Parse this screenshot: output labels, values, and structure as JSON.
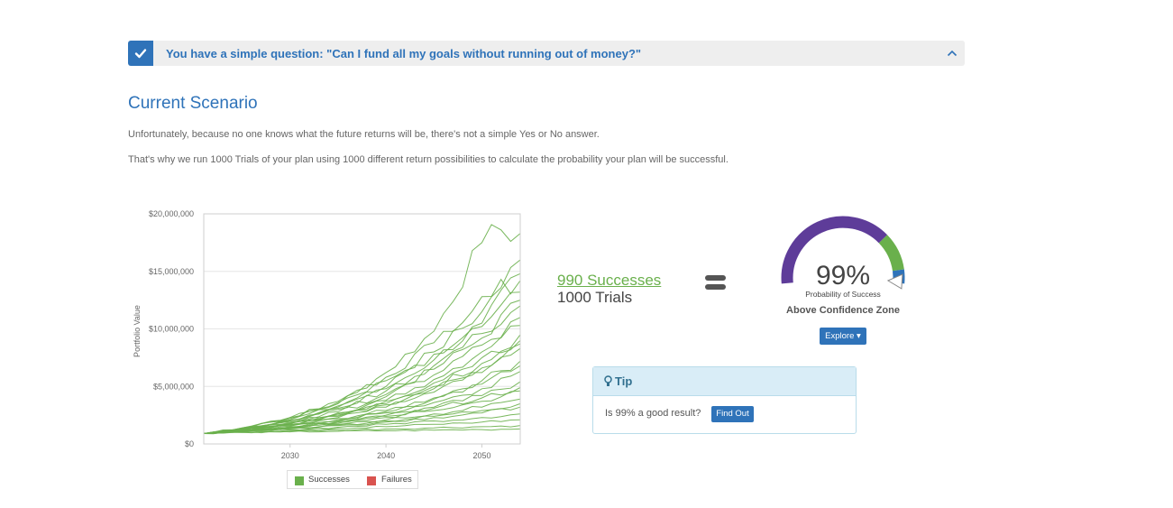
{
  "banner": {
    "text": "You have a simple question: \"Can I fund all my goals without running out of money?\"",
    "accent": "#2f73b9"
  },
  "section": {
    "title": "Current Scenario",
    "paragraph1": "Unfortunately, because no one knows what the future returns will be, there's not a simple Yes or No answer.",
    "paragraph2": "That's why we run 1000 Trials of your plan using 1000 different return possibilities to calculate the probability your plan will be successful."
  },
  "result": {
    "successes": "990 Successes",
    "trials": "1000 Trials"
  },
  "gauge": {
    "percent_text": "99%",
    "value": 0.99,
    "label": "Probability of Success",
    "zone": "Above Confidence Zone",
    "explore_label": "Explore",
    "colors": {
      "main": "#5e3c99",
      "confidence": "#6ab04c",
      "above": "#2f73b9"
    }
  },
  "tip": {
    "title": "Tip",
    "question": "Is 99% a good result?",
    "button": "Find Out"
  },
  "chart_data": {
    "type": "line",
    "ylabel": "Portfolio Value",
    "ylim": [
      0,
      20000000
    ],
    "xlim": [
      2021,
      2054
    ],
    "y_ticks": [
      "$0",
      "$5,000,000",
      "$10,000,000",
      "$15,000,000",
      "$20,000,000"
    ],
    "y_tick_values": [
      0,
      5000000,
      10000000,
      15000000,
      20000000
    ],
    "x_ticks": [
      "2030",
      "2040",
      "2050"
    ],
    "x_tick_values": [
      2030,
      2040,
      2050
    ],
    "legend": [
      {
        "name": "Successes",
        "color": "#6ab04c"
      },
      {
        "name": "Failures",
        "color": "#d9534f"
      }
    ],
    "series_color": "#6ab04c",
    "series": [
      {
        "name": "",
        "x": [
          2021,
          2025,
          2030,
          2035,
          2040,
          2045,
          2050,
          2052,
          2054
        ],
        "values": [
          900000,
          1400000,
          2300000,
          3500000,
          6200000,
          9800000,
          17500000,
          18600000,
          18300000
        ]
      },
      {
        "name": "",
        "x": [
          2021,
          2025,
          2030,
          2035,
          2040,
          2045,
          2050,
          2054
        ],
        "values": [
          900000,
          1400000,
          2300000,
          3600000,
          5500000,
          8000000,
          11500000,
          16000000
        ]
      },
      {
        "name": "",
        "x": [
          2021,
          2025,
          2030,
          2035,
          2040,
          2045,
          2050,
          2054
        ],
        "values": [
          900000,
          1350000,
          2100000,
          3300000,
          4800000,
          7300000,
          10500000,
          14800000
        ]
      },
      {
        "name": "",
        "x": [
          2021,
          2025,
          2030,
          2035,
          2040,
          2045,
          2050,
          2054
        ],
        "values": [
          900000,
          1300000,
          2000000,
          3000000,
          4300000,
          6500000,
          9200000,
          12500000
        ]
      },
      {
        "name": "",
        "x": [
          2021,
          2025,
          2030,
          2035,
          2040,
          2045,
          2050,
          2054
        ],
        "values": [
          900000,
          1300000,
          1900000,
          2700000,
          3800000,
          5600000,
          8000000,
          11000000
        ]
      },
      {
        "name": "",
        "x": [
          2021,
          2025,
          2030,
          2035,
          2040,
          2045,
          2050,
          2054
        ],
        "values": [
          900000,
          1250000,
          1800000,
          2500000,
          3500000,
          5000000,
          7000000,
          9500000
        ]
      },
      {
        "name": "",
        "x": [
          2021,
          2025,
          2030,
          2035,
          2040,
          2045,
          2050,
          2054
        ],
        "values": [
          900000,
          1250000,
          1700000,
          2300000,
          3200000,
          4500000,
          6200000,
          8300000
        ]
      },
      {
        "name": "",
        "x": [
          2021,
          2025,
          2030,
          2035,
          2040,
          2045,
          2050,
          2054
        ],
        "values": [
          900000,
          1200000,
          1650000,
          2200000,
          2900000,
          4000000,
          5500000,
          7200000
        ]
      },
      {
        "name": "",
        "x": [
          2021,
          2025,
          2030,
          2035,
          2040,
          2045,
          2050,
          2054
        ],
        "values": [
          900000,
          1200000,
          1600000,
          2100000,
          2700000,
          3600000,
          4800000,
          6300000
        ]
      },
      {
        "name": "",
        "x": [
          2021,
          2025,
          2030,
          2035,
          2040,
          2045,
          2050,
          2054
        ],
        "values": [
          900000,
          1150000,
          1500000,
          1950000,
          2500000,
          3200000,
          4200000,
          5400000
        ]
      },
      {
        "name": "",
        "x": [
          2021,
          2025,
          2030,
          2035,
          2040,
          2045,
          2050,
          2054
        ],
        "values": [
          900000,
          1150000,
          1450000,
          1800000,
          2300000,
          2900000,
          3700000,
          4600000
        ]
      },
      {
        "name": "",
        "x": [
          2021,
          2025,
          2030,
          2035,
          2040,
          2045,
          2050,
          2054
        ],
        "values": [
          900000,
          1100000,
          1400000,
          1700000,
          2100000,
          2600000,
          3200000,
          3900000
        ]
      },
      {
        "name": "",
        "x": [
          2021,
          2025,
          2030,
          2035,
          2040,
          2045,
          2050,
          2054
        ],
        "values": [
          900000,
          1100000,
          1300000,
          1600000,
          1900000,
          2300000,
          2700000,
          3200000
        ]
      },
      {
        "name": "",
        "x": [
          2021,
          2025,
          2030,
          2035,
          2040,
          2045,
          2050,
          2054
        ],
        "values": [
          900000,
          1050000,
          1250000,
          1450000,
          1700000,
          2000000,
          2300000,
          2600000
        ]
      },
      {
        "name": "",
        "x": [
          2021,
          2025,
          2030,
          2035,
          2040,
          2045,
          2050,
          2054
        ],
        "values": [
          900000,
          1050000,
          1200000,
          1350000,
          1500000,
          1700000,
          1900000,
          2100000
        ]
      },
      {
        "name": "",
        "x": [
          2021,
          2025,
          2030,
          2035,
          2040,
          2045,
          2050,
          2054
        ],
        "values": [
          900000,
          1000000,
          1100000,
          1200000,
          1300000,
          1400000,
          1500000,
          1600000
        ]
      },
      {
        "name": "",
        "x": [
          2021,
          2025,
          2030,
          2035,
          2040,
          2045,
          2050,
          2054
        ],
        "values": [
          900000,
          1000000,
          1050000,
          1100000,
          1150000,
          1200000,
          1250000,
          1300000
        ]
      },
      {
        "name": "",
        "x": [
          2021,
          2025,
          2030,
          2035,
          2040,
          2045,
          2050,
          2054
        ],
        "values": [
          900000,
          1350000,
          2200000,
          3700000,
          5800000,
          8800000,
          12800000,
          14200000
        ]
      },
      {
        "name": "",
        "x": [
          2021,
          2025,
          2030,
          2035,
          2040,
          2045,
          2050,
          2054
        ],
        "values": [
          900000,
          1300000,
          2050000,
          3200000,
          5000000,
          7800000,
          10200000,
          13200000
        ]
      },
      {
        "name": "",
        "x": [
          2021,
          2025,
          2030,
          2035,
          2040,
          2045,
          2050,
          2054
        ],
        "values": [
          900000,
          1250000,
          1850000,
          2800000,
          4100000,
          6000000,
          8600000,
          10300000
        ]
      },
      {
        "name": "",
        "x": [
          2021,
          2025,
          2030,
          2035,
          2040,
          2045,
          2050,
          2054
        ],
        "values": [
          900000,
          1200000,
          1750000,
          2600000,
          3700000,
          5300000,
          7500000,
          9000000
        ]
      },
      {
        "name": "",
        "x": [
          2021,
          2025,
          2030,
          2035,
          2040,
          2045,
          2050,
          2054
        ],
        "values": [
          900000,
          1150000,
          1550000,
          2000000,
          2800000,
          3900000,
          5200000,
          6800000
        ]
      },
      {
        "name": "",
        "x": [
          2021,
          2025,
          2030,
          2035,
          2040,
          2045,
          2050,
          2054
        ],
        "values": [
          900000,
          1100000,
          1400000,
          1900000,
          2400000,
          3100000,
          4000000,
          4900000
        ]
      },
      {
        "name": "",
        "x": [
          2021,
          2025,
          2030,
          2035,
          2040,
          2045,
          2050,
          2054
        ],
        "values": [
          900000,
          1100000,
          1350000,
          1650000,
          2000000,
          2400000,
          2900000,
          3500000
        ]
      },
      {
        "name": "",
        "x": [
          2021,
          2025,
          2030,
          2035,
          2040,
          2045,
          2050,
          2054
        ],
        "values": [
          900000,
          1300000,
          2000000,
          3100000,
          4600000,
          6800000,
          9600000,
          12000000
        ]
      },
      {
        "name": "",
        "x": [
          2021,
          2025,
          2030,
          2035,
          2040,
          2045,
          2050,
          2054
        ],
        "values": [
          900000,
          1200000,
          1700000,
          2400000,
          3400000,
          4800000,
          6600000,
          8700000
        ]
      }
    ]
  }
}
